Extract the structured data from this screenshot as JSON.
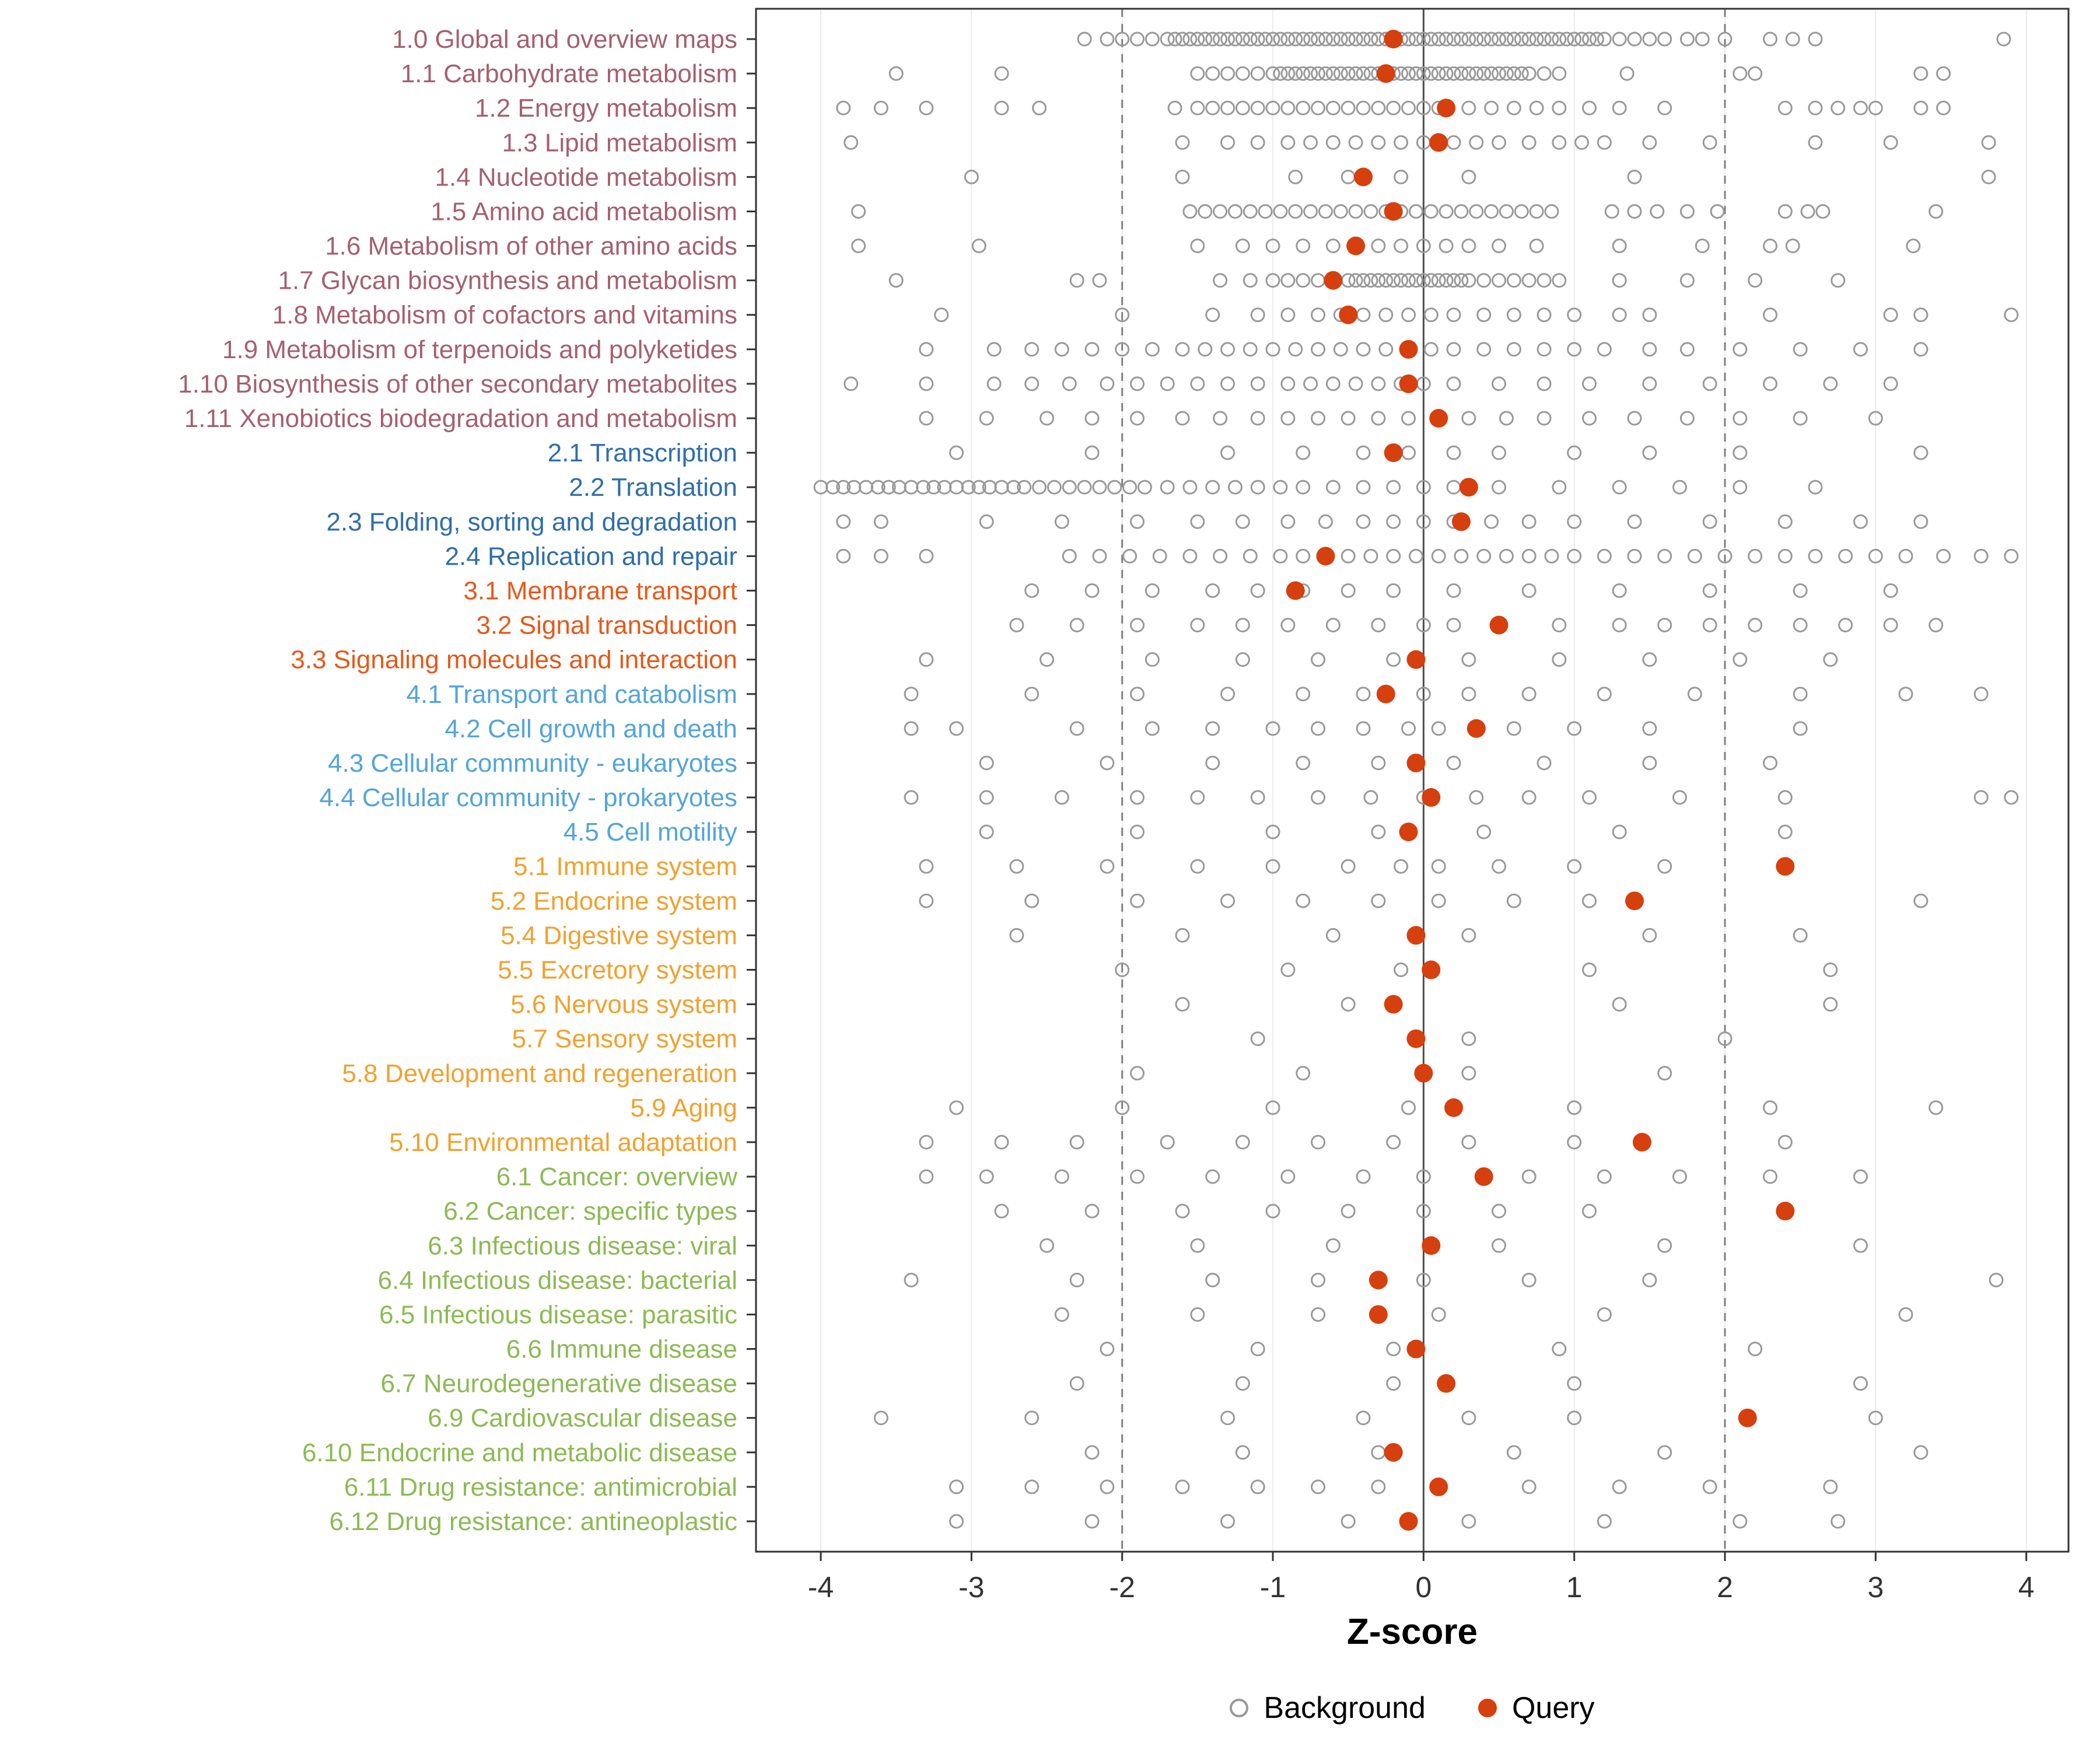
{
  "chart_data": {
    "type": "scatter",
    "title": "",
    "xlabel": "Z-score",
    "xlim": [
      -4.43,
      4.28
    ],
    "x_ticks": [
      -4,
      -3,
      -2,
      -1,
      0,
      1,
      2,
      3,
      4
    ],
    "ref_lines": {
      "solid": [
        0
      ],
      "dashed": [
        -2,
        2
      ]
    },
    "legend": {
      "background_label": "Background",
      "query_label": "Query"
    },
    "colors": {
      "query": "#d63f0e",
      "background_stroke": "#999999",
      "axis_text": "#333333",
      "grid": "#ebebeb",
      "ref_dashed": "#7f7f7f",
      "ref_solid": "#4d4d4d",
      "panel_border": "#333333",
      "groups": {
        "1": "#a5606f",
        "2": "#2f6eaa",
        "3": "#e65819",
        "4": "#53a4da",
        "5": "#f1a12f",
        "6": "#8cba54"
      }
    },
    "rows": [
      {
        "label": "1.0 Global and overview maps",
        "group": "1",
        "query": -0.2,
        "background": [
          -2.25,
          -2.1,
          -2.0,
          -1.9,
          -1.8,
          -1.7,
          -1.65,
          -1.6,
          -1.55,
          -1.5,
          -1.45,
          -1.4,
          -1.35,
          -1.3,
          -1.25,
          -1.2,
          -1.15,
          -1.1,
          -1.05,
          -1.0,
          -0.95,
          -0.9,
          -0.85,
          -0.8,
          -0.75,
          -0.7,
          -0.65,
          -0.6,
          -0.55,
          -0.5,
          -0.45,
          -0.4,
          -0.35,
          -0.3,
          -0.25,
          -0.2,
          -0.15,
          -0.1,
          -0.05,
          0,
          0.05,
          0.1,
          0.15,
          0.2,
          0.25,
          0.3,
          0.35,
          0.4,
          0.45,
          0.5,
          0.55,
          0.6,
          0.65,
          0.7,
          0.75,
          0.8,
          0.85,
          0.9,
          0.95,
          1.0,
          1.05,
          1.1,
          1.15,
          1.2,
          1.3,
          1.4,
          1.5,
          1.6,
          1.75,
          1.85,
          2.0,
          2.3,
          2.45,
          2.6,
          3.85
        ]
      },
      {
        "label": "1.1 Carbohydrate metabolism",
        "group": "1",
        "query": -0.25,
        "background": [
          -3.5,
          -2.8,
          -1.5,
          -1.4,
          -1.3,
          -1.2,
          -1.1,
          -1.0,
          -0.95,
          -0.9,
          -0.85,
          -0.8,
          -0.75,
          -0.7,
          -0.65,
          -0.6,
          -0.55,
          -0.5,
          -0.45,
          -0.4,
          -0.35,
          -0.3,
          -0.25,
          -0.2,
          -0.15,
          -0.1,
          -0.05,
          0,
          0.05,
          0.1,
          0.15,
          0.2,
          0.25,
          0.3,
          0.35,
          0.4,
          0.45,
          0.5,
          0.55,
          0.6,
          0.65,
          0.7,
          0.8,
          0.9,
          1.35,
          2.1,
          2.2,
          3.3,
          3.45
        ]
      },
      {
        "label": "1.2 Energy metabolism",
        "group": "1",
        "query": 0.15,
        "background": [
          -3.85,
          -3.6,
          -3.3,
          -2.8,
          -2.55,
          -1.65,
          -1.5,
          -1.4,
          -1.3,
          -1.2,
          -1.1,
          -1.0,
          -0.9,
          -0.8,
          -0.7,
          -0.6,
          -0.5,
          -0.4,
          -0.3,
          -0.2,
          -0.1,
          0,
          0.1,
          0.3,
          0.45,
          0.6,
          0.75,
          0.9,
          1.1,
          1.3,
          1.6,
          2.4,
          2.6,
          2.75,
          2.9,
          3.0,
          3.3,
          3.45
        ]
      },
      {
        "label": "1.3 Lipid metabolism",
        "group": "1",
        "query": 0.1,
        "background": [
          -3.8,
          -1.6,
          -1.3,
          -1.1,
          -0.9,
          -0.75,
          -0.6,
          -0.45,
          -0.3,
          -0.15,
          0,
          0.2,
          0.35,
          0.5,
          0.7,
          0.9,
          1.05,
          1.2,
          1.5,
          1.9,
          2.6,
          3.1,
          3.75
        ]
      },
      {
        "label": "1.4 Nucleotide metabolism",
        "group": "1",
        "query": -0.4,
        "background": [
          -3.0,
          -1.6,
          -0.85,
          -0.5,
          -0.15,
          0.3,
          1.4,
          3.75
        ]
      },
      {
        "label": "1.5 Amino acid metabolism",
        "group": "1",
        "query": -0.2,
        "background": [
          -3.75,
          -1.55,
          -1.45,
          -1.35,
          -1.25,
          -1.15,
          -1.05,
          -0.95,
          -0.85,
          -0.75,
          -0.65,
          -0.55,
          -0.45,
          -0.35,
          -0.25,
          -0.15,
          -0.05,
          0.05,
          0.15,
          0.25,
          0.35,
          0.45,
          0.55,
          0.65,
          0.75,
          0.85,
          1.25,
          1.4,
          1.55,
          1.75,
          1.95,
          2.4,
          2.55,
          2.65,
          3.4
        ]
      },
      {
        "label": "1.6 Metabolism of other amino acids",
        "group": "1",
        "query": -0.45,
        "background": [
          -3.75,
          -2.95,
          -1.5,
          -1.2,
          -1.0,
          -0.8,
          -0.6,
          -0.45,
          -0.3,
          -0.15,
          0,
          0.15,
          0.3,
          0.5,
          0.75,
          1.3,
          1.85,
          2.3,
          2.45,
          3.25
        ]
      },
      {
        "label": "1.7 Glycan biosynthesis and metabolism",
        "group": "1",
        "query": -0.6,
        "background": [
          -3.5,
          -2.3,
          -2.15,
          -1.35,
          -1.15,
          -1.0,
          -0.9,
          -0.8,
          -0.7,
          -0.6,
          -0.5,
          -0.45,
          -0.4,
          -0.35,
          -0.3,
          -0.25,
          -0.2,
          -0.15,
          -0.1,
          -0.05,
          0,
          0.05,
          0.1,
          0.15,
          0.2,
          0.25,
          0.3,
          0.4,
          0.5,
          0.6,
          0.7,
          0.8,
          0.9,
          1.3,
          1.75,
          2.2,
          2.75
        ]
      },
      {
        "label": "1.8 Metabolism of cofactors and vitamins",
        "group": "1",
        "query": -0.5,
        "background": [
          -3.2,
          -2.0,
          -1.4,
          -1.1,
          -0.9,
          -0.7,
          -0.55,
          -0.4,
          -0.25,
          -0.1,
          0.05,
          0.2,
          0.4,
          0.6,
          0.8,
          1.0,
          1.3,
          1.5,
          2.3,
          3.1,
          3.3,
          3.9
        ]
      },
      {
        "label": "1.9 Metabolism of terpenoids and polyketides",
        "group": "1",
        "query": -0.1,
        "background": [
          -3.3,
          -2.85,
          -2.6,
          -2.4,
          -2.2,
          -2.0,
          -1.8,
          -1.6,
          -1.45,
          -1.3,
          -1.15,
          -1.0,
          -0.85,
          -0.7,
          -0.55,
          -0.4,
          -0.25,
          -0.1,
          0.05,
          0.2,
          0.4,
          0.6,
          0.8,
          1.0,
          1.2,
          1.5,
          1.75,
          2.1,
          2.5,
          2.9,
          3.3
        ]
      },
      {
        "label": "1.10 Biosynthesis of other secondary metabolites",
        "group": "1",
        "query": -0.1,
        "background": [
          -3.8,
          -3.3,
          -2.85,
          -2.6,
          -2.35,
          -2.1,
          -1.9,
          -1.7,
          -1.5,
          -1.3,
          -1.1,
          -0.9,
          -0.75,
          -0.6,
          -0.45,
          -0.3,
          -0.15,
          0,
          0.2,
          0.5,
          0.8,
          1.1,
          1.5,
          1.9,
          2.3,
          2.7,
          3.1
        ]
      },
      {
        "label": "1.11 Xenobiotics biodegradation and metabolism",
        "group": "1",
        "query": 0.1,
        "background": [
          -3.3,
          -2.9,
          -2.5,
          -2.2,
          -1.9,
          -1.6,
          -1.35,
          -1.1,
          -0.9,
          -0.7,
          -0.5,
          -0.3,
          -0.1,
          0.1,
          0.3,
          0.55,
          0.8,
          1.1,
          1.4,
          1.75,
          2.1,
          2.5,
          3.0
        ]
      },
      {
        "label": "2.1 Transcription",
        "group": "2",
        "query": -0.2,
        "background": [
          -3.1,
          -2.2,
          -1.3,
          -0.8,
          -0.4,
          -0.1,
          0.2,
          0.5,
          1.0,
          1.5,
          2.1,
          3.3
        ]
      },
      {
        "label": "2.2 Translation",
        "group": "2",
        "query": 0.3,
        "background": [
          -4.0,
          -3.92,
          -3.85,
          -3.78,
          -3.7,
          -3.62,
          -3.55,
          -3.48,
          -3.4,
          -3.32,
          -3.25,
          -3.18,
          -3.1,
          -3.02,
          -2.95,
          -2.88,
          -2.8,
          -2.72,
          -2.65,
          -2.55,
          -2.45,
          -2.35,
          -2.25,
          -2.15,
          -2.05,
          -1.95,
          -1.85,
          -1.7,
          -1.55,
          -1.4,
          -1.25,
          -1.1,
          -0.95,
          -0.8,
          -0.6,
          -0.4,
          -0.2,
          0,
          0.2,
          0.5,
          0.9,
          1.3,
          1.7,
          2.1,
          2.6
        ]
      },
      {
        "label": "2.3 Folding, sorting and degradation",
        "group": "2",
        "query": 0.25,
        "background": [
          -3.85,
          -3.6,
          -2.9,
          -2.4,
          -1.9,
          -1.5,
          -1.2,
          -0.9,
          -0.65,
          -0.4,
          -0.2,
          0,
          0.2,
          0.45,
          0.7,
          1.0,
          1.4,
          1.9,
          2.4,
          2.9,
          3.3
        ]
      },
      {
        "label": "2.4 Replication and repair",
        "group": "2",
        "query": -0.65,
        "background": [
          -3.85,
          -3.6,
          -3.3,
          -2.35,
          -2.15,
          -1.95,
          -1.75,
          -1.55,
          -1.35,
          -1.15,
          -0.95,
          -0.8,
          -0.65,
          -0.5,
          -0.35,
          -0.2,
          -0.05,
          0.1,
          0.25,
          0.4,
          0.55,
          0.7,
          0.85,
          1.0,
          1.2,
          1.4,
          1.6,
          1.8,
          2.0,
          2.2,
          2.4,
          2.6,
          2.8,
          3.0,
          3.2,
          3.45,
          3.7,
          3.9
        ]
      },
      {
        "label": "3.1 Membrane transport",
        "group": "3",
        "query": -0.85,
        "background": [
          -2.6,
          -2.2,
          -1.8,
          -1.4,
          -1.1,
          -0.8,
          -0.5,
          -0.2,
          0.2,
          0.7,
          1.3,
          1.9,
          2.5,
          3.1
        ]
      },
      {
        "label": "3.2 Signal transduction",
        "group": "3",
        "query": 0.5,
        "background": [
          -2.7,
          -2.3,
          -1.9,
          -1.5,
          -1.2,
          -0.9,
          -0.6,
          -0.3,
          0,
          0.2,
          0.9,
          1.3,
          1.6,
          1.9,
          2.2,
          2.5,
          2.8,
          3.1,
          3.4
        ]
      },
      {
        "label": "3.3 Signaling molecules and interaction",
        "group": "3",
        "query": -0.05,
        "background": [
          -3.3,
          -2.5,
          -1.8,
          -1.2,
          -0.7,
          -0.2,
          0.3,
          0.9,
          1.5,
          2.1,
          2.7
        ]
      },
      {
        "label": "4.1 Transport and catabolism",
        "group": "4",
        "query": -0.25,
        "background": [
          -3.4,
          -2.6,
          -1.9,
          -1.3,
          -0.8,
          -0.4,
          0,
          0.3,
          0.7,
          1.2,
          1.8,
          2.5,
          3.2,
          3.7
        ]
      },
      {
        "label": "4.2 Cell growth and death",
        "group": "4",
        "query": 0.35,
        "background": [
          -3.4,
          -3.1,
          -2.3,
          -1.8,
          -1.4,
          -1.0,
          -0.7,
          -0.4,
          -0.1,
          0.1,
          0.6,
          1.0,
          1.5,
          2.5
        ]
      },
      {
        "label": "4.3 Cellular community - eukaryotes",
        "group": "4",
        "query": -0.05,
        "background": [
          -2.9,
          -2.1,
          -1.4,
          -0.8,
          -0.3,
          0.2,
          0.8,
          1.5,
          2.3
        ]
      },
      {
        "label": "4.4 Cellular community - prokaryotes",
        "group": "4",
        "query": 0.05,
        "background": [
          -3.4,
          -2.9,
          -2.4,
          -1.9,
          -1.5,
          -1.1,
          -0.7,
          -0.35,
          0,
          0.35,
          0.7,
          1.1,
          1.7,
          2.4,
          3.7,
          3.9
        ]
      },
      {
        "label": "4.5 Cell motility",
        "group": "4",
        "query": -0.1,
        "background": [
          -2.9,
          -1.9,
          -1.0,
          -0.3,
          0.4,
          1.3,
          2.4
        ]
      },
      {
        "label": "5.1 Immune system",
        "group": "5",
        "query": 2.4,
        "background": [
          -3.3,
          -2.7,
          -2.1,
          -1.5,
          -1.0,
          -0.5,
          -0.15,
          0.1,
          0.5,
          1.0,
          1.6
        ]
      },
      {
        "label": "5.2 Endocrine system",
        "group": "5",
        "query": 1.4,
        "background": [
          -3.3,
          -2.6,
          -1.9,
          -1.3,
          -0.8,
          -0.3,
          0.1,
          0.6,
          1.1,
          3.3
        ]
      },
      {
        "label": "5.4 Digestive system",
        "group": "5",
        "query": -0.05,
        "background": [
          -2.7,
          -1.6,
          -0.6,
          0.3,
          1.5,
          2.5
        ]
      },
      {
        "label": "5.5 Excretory system",
        "group": "5",
        "query": 0.05,
        "background": [
          -2.0,
          -0.9,
          -0.15,
          1.1,
          2.7
        ]
      },
      {
        "label": "5.6 Nervous system",
        "group": "5",
        "query": -0.2,
        "background": [
          -1.6,
          -0.5,
          1.3,
          2.7
        ]
      },
      {
        "label": "5.7 Sensory system",
        "group": "5",
        "query": -0.05,
        "background": [
          -1.1,
          0.3,
          2.0
        ]
      },
      {
        "label": "5.8 Development and regeneration",
        "group": "5",
        "query": 0,
        "background": [
          -1.9,
          -0.8,
          0.3,
          1.6
        ]
      },
      {
        "label": "5.9 Aging",
        "group": "5",
        "query": 0.2,
        "background": [
          -3.1,
          -2.0,
          -1.0,
          -0.1,
          1.0,
          2.3,
          3.4
        ]
      },
      {
        "label": "5.10 Environmental adaptation",
        "group": "5",
        "query": 1.45,
        "background": [
          -3.3,
          -2.8,
          -2.3,
          -1.7,
          -1.2,
          -0.7,
          -0.2,
          0.3,
          1.0,
          2.4
        ]
      },
      {
        "label": "6.1 Cancer: overview",
        "group": "6",
        "query": 0.4,
        "background": [
          -3.3,
          -2.9,
          -2.4,
          -1.9,
          -1.4,
          -0.9,
          -0.4,
          0,
          0.7,
          1.2,
          1.7,
          2.3,
          2.9
        ]
      },
      {
        "label": "6.2 Cancer: specific types",
        "group": "6",
        "query": 2.4,
        "background": [
          -2.8,
          -2.2,
          -1.6,
          -1.0,
          -0.5,
          0,
          0.5,
          1.1
        ]
      },
      {
        "label": "6.3 Infectious disease: viral",
        "group": "6",
        "query": 0.05,
        "background": [
          -2.5,
          -1.5,
          -0.6,
          0.5,
          1.6,
          2.9
        ]
      },
      {
        "label": "6.4 Infectious disease: bacterial",
        "group": "6",
        "query": -0.3,
        "background": [
          -3.4,
          -2.3,
          -1.4,
          -0.7,
          0,
          0.7,
          1.5,
          3.8
        ]
      },
      {
        "label": "6.5 Infectious disease: parasitic",
        "group": "6",
        "query": -0.3,
        "background": [
          -2.4,
          -1.5,
          -0.7,
          0.1,
          1.2,
          3.2
        ]
      },
      {
        "label": "6.6 Immune disease",
        "group": "6",
        "query": -0.05,
        "background": [
          -2.1,
          -1.1,
          -0.2,
          0.9,
          2.2
        ]
      },
      {
        "label": "6.7 Neurodegenerative disease",
        "group": "6",
        "query": 0.15,
        "background": [
          -2.3,
          -1.2,
          -0.2,
          1.0,
          2.9
        ]
      },
      {
        "label": "6.9 Cardiovascular disease",
        "group": "6",
        "query": 2.15,
        "background": [
          -3.6,
          -2.6,
          -1.3,
          -0.4,
          0.3,
          1.0,
          3.0
        ]
      },
      {
        "label": "6.10 Endocrine and metabolic disease",
        "group": "6",
        "query": -0.2,
        "background": [
          -2.2,
          -1.2,
          -0.3,
          0.6,
          1.6,
          3.3
        ]
      },
      {
        "label": "6.11 Drug resistance: antimicrobial",
        "group": "6",
        "query": 0.1,
        "background": [
          -3.1,
          -2.6,
          -2.1,
          -1.6,
          -1.1,
          -0.7,
          -0.3,
          0.1,
          0.7,
          1.3,
          1.9,
          2.7
        ]
      },
      {
        "label": "6.12 Drug resistance: antineoplastic",
        "group": "6",
        "query": -0.1,
        "background": [
          -3.1,
          -2.2,
          -1.3,
          -0.5,
          0.3,
          1.2,
          2.1,
          2.75
        ]
      }
    ]
  }
}
